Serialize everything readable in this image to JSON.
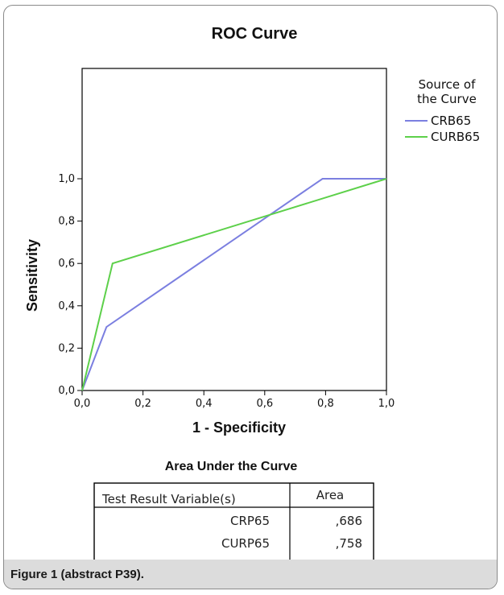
{
  "chart_data": {
    "type": "line",
    "title": "ROC Curve",
    "xlabel": "1 - Specificity",
    "ylabel": "Sensitivity",
    "xlim": [
      0,
      1
    ],
    "ylim": [
      0,
      1
    ],
    "x_ticks": [
      "0,0",
      "0,2",
      "0,4",
      "0,6",
      "0,8",
      "1,0"
    ],
    "y_ticks": [
      "0,0",
      "0,2",
      "0,4",
      "0,6",
      "0,8",
      "1,0"
    ],
    "grid": false,
    "legend_title_lines": [
      "Source of",
      "the Curve"
    ],
    "legend_position": "top-right",
    "series": [
      {
        "name": "CRB65",
        "color": "#7b7fe0",
        "points": [
          [
            0,
            0
          ],
          [
            0.08,
            0.3
          ],
          [
            0.79,
            1.0
          ],
          [
            1.0,
            1.0
          ]
        ]
      },
      {
        "name": "CURB65",
        "color": "#5dd04a",
        "points": [
          [
            0,
            0
          ],
          [
            0.1,
            0.6
          ],
          [
            1.0,
            1.0
          ]
        ]
      }
    ]
  },
  "auc_table": {
    "title": "Area Under the Curve",
    "headers": [
      "Test Result Variable(s)",
      "Area"
    ],
    "rows": [
      [
        "CRP65",
        ",686"
      ],
      [
        "CURP65",
        ",758"
      ]
    ]
  },
  "caption": "Figure 1 (abstract P39)."
}
